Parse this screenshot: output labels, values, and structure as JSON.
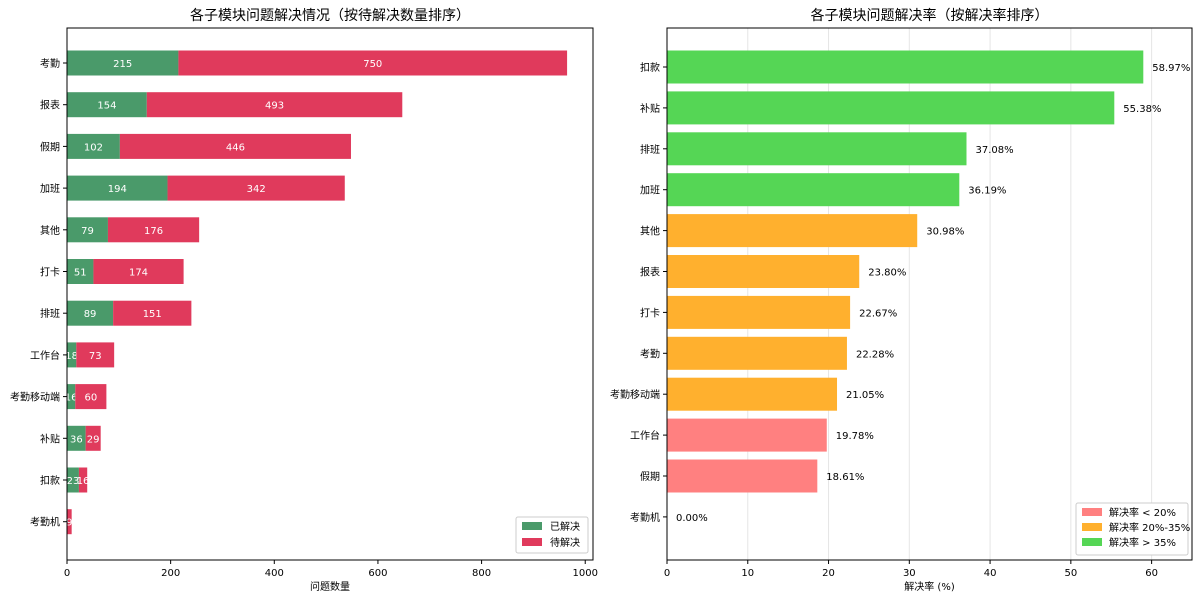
{
  "chart_data": [
    {
      "type": "bar",
      "orientation": "horizontal",
      "stacked": true,
      "title": "各子模块问题解决情况（按待解决数量排序）",
      "xlabel": "问题数量",
      "ylabel": "",
      "xlim": [
        0,
        1015
      ],
      "xticks": [
        0,
        200,
        400,
        600,
        800,
        1000
      ],
      "categories": [
        "考勤",
        "报表",
        "假期",
        "加班",
        "其他",
        "打卡",
        "排班",
        "工作台",
        "考勤移动端",
        "补贴",
        "扣款",
        "考勤机"
      ],
      "series": [
        {
          "name": "已解决",
          "color": "#4a9a6a",
          "values": [
            215,
            154,
            102,
            194,
            79,
            51,
            89,
            18,
            16,
            36,
            23,
            0
          ]
        },
        {
          "name": "待解决",
          "color": "#e03a5c",
          "values": [
            750,
            493,
            446,
            342,
            176,
            174,
            151,
            73,
            60,
            29,
            16,
            9
          ]
        }
      ],
      "legend": "lower-right",
      "grid": false
    },
    {
      "type": "bar",
      "orientation": "horizontal",
      "title": "各子模块问题解决率（按解决率排序）",
      "xlabel": "解决率 (%)",
      "ylabel": "",
      "xlim": [
        0,
        65
      ],
      "xticks": [
        0,
        10,
        20,
        30,
        40,
        50,
        60
      ],
      "categories": [
        "扣款",
        "补贴",
        "排班",
        "加班",
        "其他",
        "报表",
        "打卡",
        "考勤",
        "考勤移动端",
        "工作台",
        "假期",
        "考勤机"
      ],
      "values": [
        58.97,
        55.38,
        37.08,
        36.19,
        30.98,
        23.8,
        22.67,
        22.28,
        21.05,
        19.78,
        18.61,
        0.0
      ],
      "labels": [
        "58.97%",
        "55.38%",
        "37.08%",
        "36.19%",
        "30.98%",
        "23.80%",
        "22.67%",
        "22.28%",
        "21.05%",
        "19.78%",
        "18.61%",
        "0.00%"
      ],
      "legend_entries": [
        {
          "label": "解决率 < 20%",
          "color": "#ff8080"
        },
        {
          "label": "解决率 20%-35%",
          "color": "#ffb02e"
        },
        {
          "label": "解决率 > 35%",
          "color": "#55d655"
        }
      ],
      "legend": "lower-right",
      "grid": true
    }
  ]
}
